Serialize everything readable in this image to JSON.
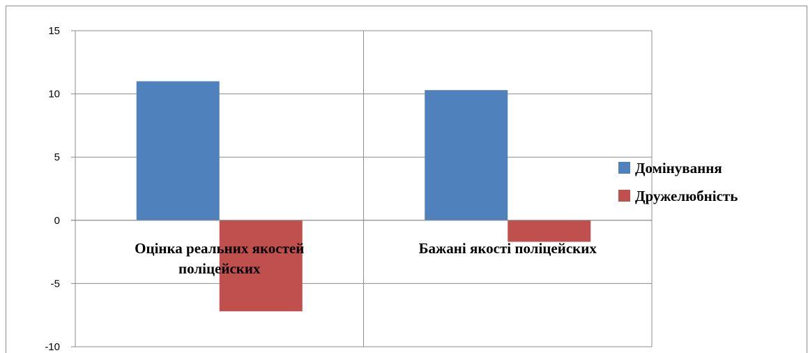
{
  "chart_data": {
    "type": "bar",
    "categories": [
      [
        "Оцінка реальних якостей",
        "поліцейских"
      ],
      [
        "Бажані якості поліцейских"
      ]
    ],
    "series": [
      {
        "name": "Домінування",
        "values": [
          11.0,
          10.3
        ],
        "color": "#4f81bd"
      },
      {
        "name": "Дружелюбність",
        "values": [
          -7.2,
          -1.7
        ],
        "color": "#c0504d"
      }
    ],
    "ylim": [
      -10,
      15
    ],
    "yticks": [
      15,
      10,
      5,
      0,
      -5,
      -10
    ],
    "grid": true,
    "legend_position": "right"
  }
}
